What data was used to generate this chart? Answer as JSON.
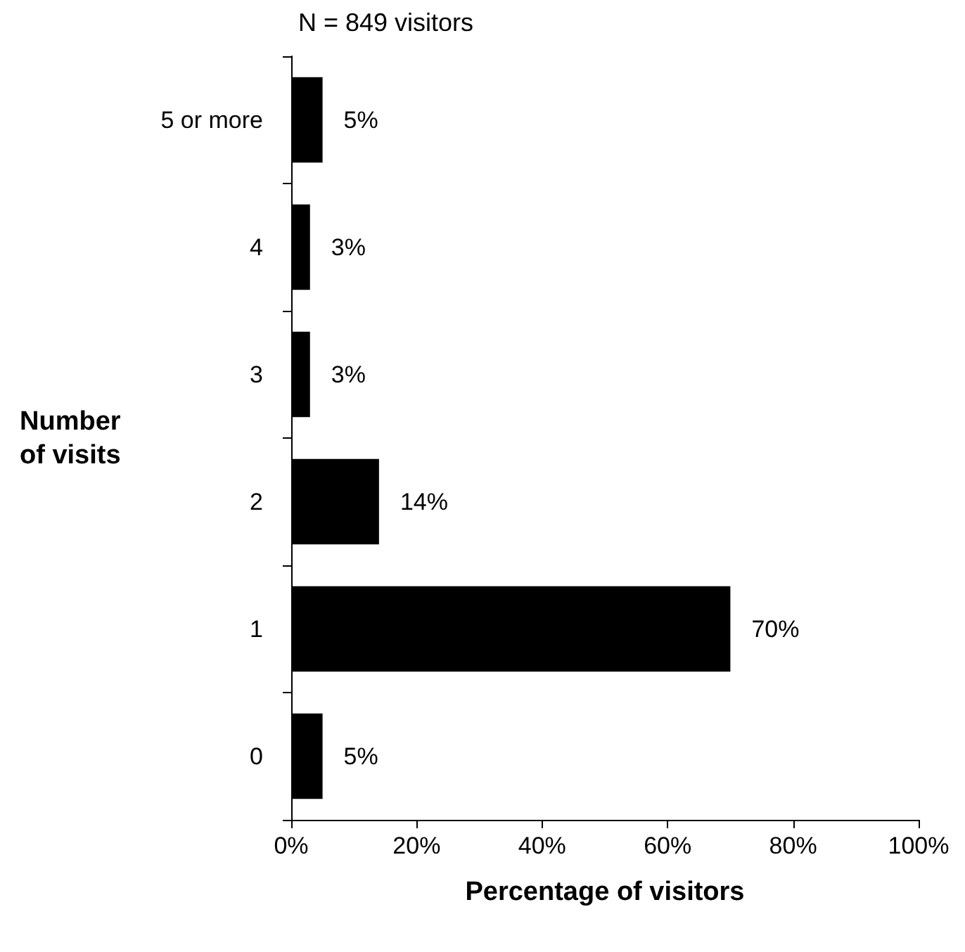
{
  "chart_data": {
    "type": "bar",
    "orientation": "horizontal",
    "title": "N = 849 visitors",
    "xlabel": "Percentage of visitors",
    "ylabel": "Number of visits",
    "categories": [
      "5 or more",
      "4",
      "3",
      "2",
      "1",
      "0"
    ],
    "values": [
      5,
      3,
      3,
      14,
      70,
      5
    ],
    "value_labels": [
      "5%",
      "3%",
      "3%",
      "14%",
      "70%",
      "5%"
    ],
    "color": "#000000",
    "xlim": [
      0,
      100
    ],
    "xticks": [
      {
        "value": 0,
        "label": "0%"
      },
      {
        "value": 20,
        "label": "20%"
      },
      {
        "value": 40,
        "label": "40%"
      },
      {
        "value": 60,
        "label": "60%"
      },
      {
        "value": 80,
        "label": "80%"
      },
      {
        "value": 100,
        "label": "100%"
      }
    ],
    "grid": false
  }
}
